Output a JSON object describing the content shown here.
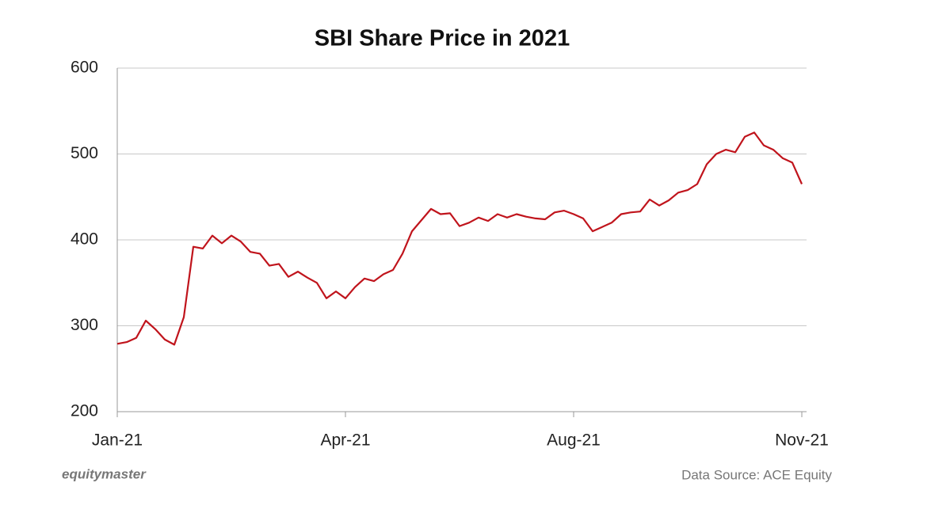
{
  "chart_data": {
    "type": "line",
    "title": "SBI Share Price in 2021",
    "categories": [
      "Jan-21",
      null,
      null,
      null,
      null,
      null,
      null,
      null,
      null,
      null,
      null,
      null,
      null,
      null,
      null,
      null,
      null,
      null,
      null,
      null,
      null,
      null,
      null,
      null,
      "Apr-21",
      null,
      null,
      null,
      null,
      null,
      null,
      null,
      null,
      null,
      null,
      null,
      null,
      null,
      null,
      null,
      null,
      null,
      null,
      null,
      null,
      null,
      null,
      null,
      "Aug-21",
      null,
      null,
      null,
      null,
      null,
      null,
      null,
      null,
      null,
      null,
      null,
      null,
      null,
      null,
      null,
      null,
      null,
      null,
      null,
      null,
      null,
      null,
      null,
      "Nov-21"
    ],
    "series": [
      {
        "name": "SBI",
        "color": "#c0141c",
        "values": [
          279,
          281,
          286,
          306,
          296,
          284,
          278,
          310,
          392,
          390,
          405,
          396,
          405,
          398,
          386,
          384,
          370,
          372,
          357,
          363,
          356,
          350,
          332,
          340,
          332,
          345,
          355,
          352,
          360,
          365,
          384,
          410,
          423,
          436,
          430,
          431,
          416,
          420,
          426,
          422,
          430,
          426,
          430,
          427,
          425,
          424,
          432,
          434,
          430,
          425,
          410,
          415,
          420,
          430,
          432,
          433,
          447,
          440,
          446,
          455,
          458,
          465,
          488,
          500,
          505,
          502,
          520,
          525,
          510,
          505,
          495,
          490,
          465
        ]
      }
    ],
    "ylim": [
      200,
      600
    ],
    "yticks": [
      200,
      300,
      400,
      500,
      600
    ],
    "grid": true,
    "brand": "equitymaster",
    "source": "Data Source: ACE Equity"
  }
}
